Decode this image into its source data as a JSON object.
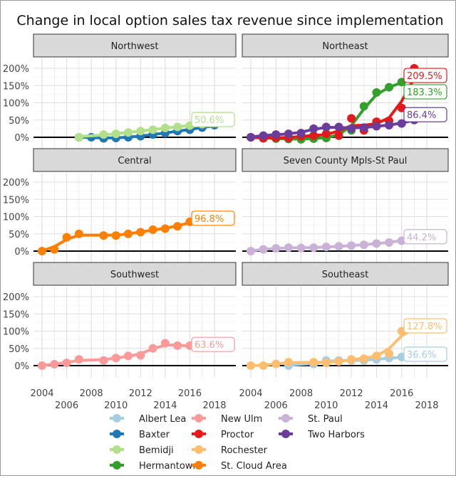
{
  "chart_data": {
    "type": "line",
    "title": "Change in local option sales tax revenue since implementation",
    "xlabel": "",
    "ylabel": "",
    "xlim": [
      2003.5,
      2019.5
    ],
    "ylim": [
      -15,
      225
    ],
    "x_ticks_top": [
      "2004",
      "2008",
      "2012",
      "2016"
    ],
    "x_ticks_bottom": [
      "2006",
      "2010",
      "2014",
      "2018"
    ],
    "y_ticks": [
      "0%",
      "50%",
      "100%",
      "150%",
      "200%"
    ],
    "y_tick_values": [
      0,
      50,
      100,
      150,
      200
    ],
    "legend_position": "bottom",
    "colors": {
      "Albert Lea": "#a6cee3",
      "Baxter": "#1f78b4",
      "Bemidji": "#b2df8a",
      "Hermantown": "#33a02c",
      "New Ulm": "#fb9a99",
      "Proctor": "#e31a1c",
      "Rochester": "#fdbf6f",
      "St. Cloud Area": "#ff7f00",
      "St. Paul": "#cab2d6",
      "Two Harbors": "#6a3d9a"
    },
    "legend": [
      "Albert Lea",
      "Baxter",
      "Bemidji",
      "Hermantown",
      "New Ulm",
      "Proctor",
      "Rochester",
      "St. Cloud Area",
      "St. Paul",
      "Two Harbors"
    ],
    "panels": [
      {
        "title": "Northwest",
        "series": [
          {
            "name": "Baxter",
            "x": [
              2007,
              2008,
              2009,
              2010,
              2011,
              2012,
              2013,
              2014,
              2015,
              2016,
              2017,
              2018
            ],
            "y": [
              0,
              0,
              -3,
              -2,
              0,
              3,
              8,
              12,
              18,
              22,
              28,
              35
            ]
          },
          {
            "name": "Bemidji",
            "x": [
              2007,
              2009,
              2010,
              2011,
              2012,
              2013,
              2014,
              2015,
              2016,
              2017,
              2018
            ],
            "y": [
              0,
              8,
              10,
              14,
              18,
              22,
              27,
              30,
              34,
              38,
              45
            ],
            "label": "50.6%"
          }
        ]
      },
      {
        "title": "Northeast",
        "series": [
          {
            "name": "Hermantown",
            "x": [
              2004,
              2005,
              2006,
              2007,
              2008,
              2009,
              2010,
              2011,
              2012,
              2013,
              2014,
              2015,
              2016,
              2017
            ],
            "y": [
              0,
              -2,
              -4,
              -5,
              -6,
              -4,
              -2,
              5,
              20,
              90,
              130,
              145,
              160,
              170
            ],
            "label": "183.3%"
          },
          {
            "name": "Proctor",
            "x": [
              2004,
              2005,
              2006,
              2007,
              2008,
              2009,
              2010,
              2011,
              2012,
              2013,
              2014,
              2015,
              2016,
              2017
            ],
            "y": [
              0,
              -3,
              -1,
              -2,
              3,
              5,
              10,
              5,
              55,
              20,
              45,
              48,
              85,
              200
            ],
            "label": "209.5%"
          },
          {
            "name": "Two Harbors",
            "x": [
              2004,
              2005,
              2006,
              2007,
              2008,
              2009,
              2010,
              2011,
              2012,
              2013,
              2014,
              2015,
              2016,
              2017,
              2018
            ],
            "y": [
              0,
              5,
              8,
              10,
              12,
              25,
              30,
              30,
              25,
              28,
              32,
              35,
              40,
              50,
              60
            ],
            "label": "86.4%"
          }
        ]
      },
      {
        "title": "Central",
        "series": [
          {
            "name": "St. Cloud Area",
            "x": [
              2004,
              2005,
              2006,
              2007,
              2009,
              2010,
              2011,
              2012,
              2013,
              2014,
              2015,
              2016,
              2017
            ],
            "y": [
              0,
              5,
              40,
              50,
              45,
              45,
              50,
              55,
              62,
              65,
              72,
              85,
              88
            ],
            "label": "96.8%"
          }
        ]
      },
      {
        "title": "Seven County Mpls-St Paul",
        "series": [
          {
            "name": "St. Paul",
            "x": [
              2004,
              2005,
              2006,
              2007,
              2008,
              2009,
              2010,
              2011,
              2012,
              2013,
              2014,
              2015,
              2016,
              2017
            ],
            "y": [
              0,
              5,
              8,
              10,
              9,
              10,
              12,
              14,
              16,
              18,
              22,
              25,
              30,
              35
            ],
            "label": "44.2%"
          }
        ]
      },
      {
        "title": "Southwest",
        "series": [
          {
            "name": "New Ulm",
            "x": [
              2004,
              2005,
              2006,
              2007,
              2009,
              2010,
              2011,
              2012,
              2013,
              2014,
              2015,
              2016,
              2017
            ],
            "y": [
              0,
              4,
              8,
              18,
              15,
              22,
              28,
              30,
              50,
              65,
              58,
              58,
              52
            ],
            "label": "63.6%"
          }
        ]
      },
      {
        "title": "Southeast",
        "series": [
          {
            "name": "Albert Lea",
            "x": [
              2007,
              2009,
              2010,
              2011,
              2012,
              2013,
              2014,
              2015,
              2016,
              2017
            ],
            "y": [
              0,
              5,
              15,
              15,
              15,
              15,
              18,
              22,
              25,
              25
            ],
            "label": "36.6%"
          },
          {
            "name": "Rochester",
            "x": [
              2004,
              2005,
              2006,
              2007,
              2009,
              2010,
              2011,
              2012,
              2013,
              2014,
              2015,
              2016,
              2017
            ],
            "y": [
              0,
              0,
              5,
              10,
              10,
              8,
              12,
              18,
              20,
              28,
              35,
              100,
              110
            ],
            "label": "127.8%"
          }
        ]
      }
    ]
  }
}
